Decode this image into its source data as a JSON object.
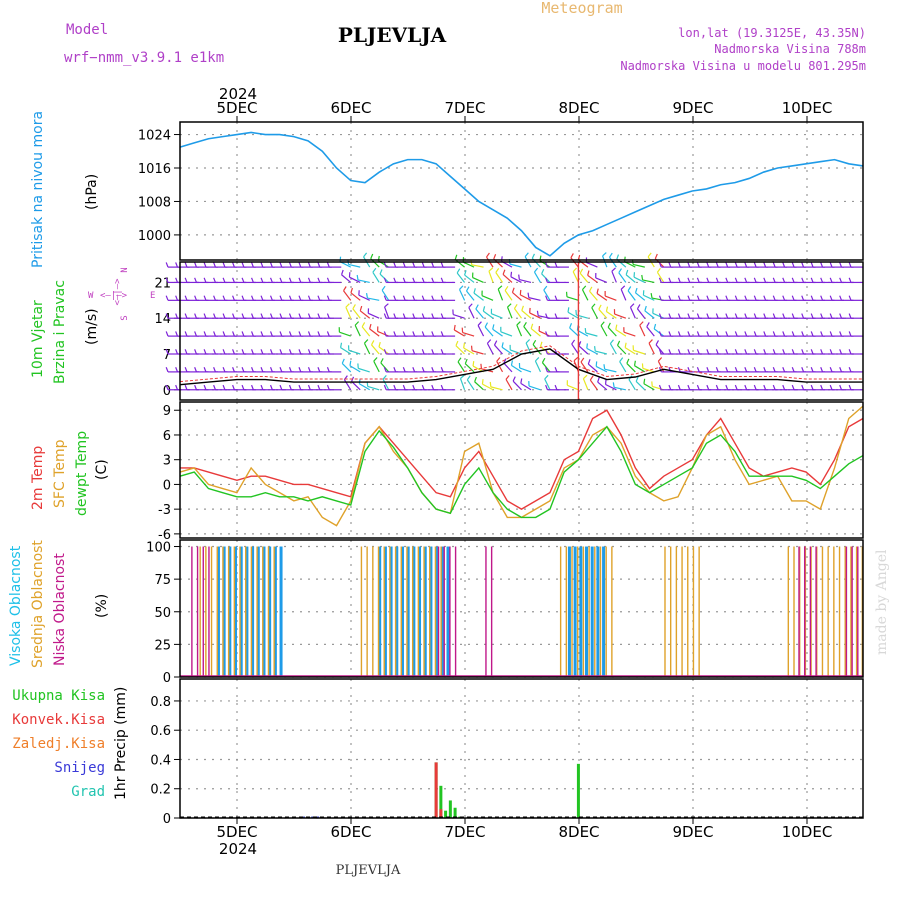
{
  "header": {
    "model_label": "Model",
    "model_name": "wrf−nmm_v3.9.1  e1km",
    "station": "PLJEVLJA",
    "product": "Meteogram",
    "coords": "lon,lat (19.3125E, 43.35N)",
    "elevation": "Nadmorska Visina 788m",
    "model_elevation": "Nadmorska Visina u modelu 801.295m",
    "year": "2024",
    "footer_station": "PLJEVLJA",
    "watermark": "made by Angel"
  },
  "colors": {
    "pressure": "#1e9be8",
    "temp2m": "#e83a3a",
    "sfc": "#dfa22a",
    "dewpt": "#22c422",
    "high": "#1e9be8",
    "mid": "#dfa22a",
    "low": "#c0188a",
    "total": "#22c422",
    "conv": "#e83a3a",
    "frozen": "#ef7f2a",
    "snow": "#3a3ad8",
    "graupel": "#22c4b0",
    "barb": "#7d22d8",
    "compass": "#c040c0"
  },
  "x_axis": {
    "days": [
      "5DEC",
      "6DEC",
      "7DEC",
      "8DEC",
      "9DEC",
      "10DEC"
    ],
    "year": "2024"
  },
  "panel_labels": {
    "pressure": {
      "title": "Pritisak na nivou mora",
      "unit": "(hPa)"
    },
    "wind": {
      "title1": "10m Vjetar",
      "title2": "Brzina i Pravac",
      "unit": "(m/s)",
      "compass_n": "N",
      "compass_e": "E",
      "compass_w": "W",
      "compass_s": "S",
      "compass_glyph1": "<—|—>",
      "compass_glyph2": "<—|—>"
    },
    "temp": {
      "t1": "2m Temp",
      "t2": "SFC Temp",
      "t3": "dewpt Temp",
      "unit": "(C)"
    },
    "cloud": {
      "c1": "Visoka Oblacnost",
      "c2": "Srednja Oblacnost",
      "c3": "Niska Oblacnost",
      "unit": "(%)"
    },
    "precip": {
      "unit": "1hr Precip (mm)",
      "legend": [
        "Ukupna Kisa",
        "Konvek.Kisa",
        "Zaledj.Kisa",
        "Snijeg",
        "Grad"
      ]
    }
  },
  "chart_data": [
    {
      "type": "line",
      "title": "Pritisak na nivou mora",
      "ylabel": "(hPa)",
      "ylim": [
        994,
        1027
      ],
      "yticks": [
        1000,
        1008,
        1016,
        1024
      ],
      "x_start": "2024-12-04 15:00",
      "x_end": "2024-12-10 15:00",
      "grid": true,
      "series": [
        {
          "name": "Pritisak na nivou mora",
          "x_hours": [
            0,
            3,
            6,
            9,
            12,
            15,
            18,
            21,
            24,
            27,
            30,
            33,
            36,
            39,
            42,
            45,
            48,
            51,
            54,
            57,
            60,
            63,
            66,
            69,
            72,
            75,
            78,
            81,
            84,
            87,
            90,
            93,
            96,
            99,
            102,
            105,
            108,
            111,
            114,
            117,
            120,
            123,
            126,
            129,
            132,
            135,
            138,
            141,
            144
          ],
          "values": [
            1021,
            1022,
            1023,
            1023.5,
            1024,
            1024.5,
            1024,
            1024,
            1023.5,
            1022.5,
            1020,
            1016,
            1013,
            1012.5,
            1015,
            1017,
            1018,
            1018,
            1017,
            1014,
            1011,
            1008,
            1006,
            1004,
            1001,
            997,
            995,
            998,
            1000,
            1001,
            1002.5,
            1004,
            1005.5,
            1007,
            1008.5,
            1009.5,
            1010.5,
            1011,
            1012,
            1012.5,
            1013.5,
            1015,
            1016,
            1016.5,
            1017,
            1017.5,
            1018,
            1017,
            1016.5
          ]
        }
      ]
    },
    {
      "type": "line",
      "title": "10m Vjetar Brzina i Pravac",
      "ylabel": "(m/s)",
      "ylim": [
        -2,
        25
      ],
      "yticks": [
        0,
        7,
        14,
        21
      ],
      "grid": true,
      "series": [
        {
          "name": "Brzina",
          "x_hours": [
            0,
            6,
            12,
            18,
            24,
            30,
            36,
            42,
            48,
            54,
            60,
            66,
            72,
            78,
            84,
            90,
            96,
            102,
            108,
            114,
            120,
            126,
            132,
            138,
            144
          ],
          "values": [
            1,
            1.5,
            2,
            2,
            1.5,
            1.5,
            1.5,
            1.5,
            1.5,
            2,
            3,
            4,
            7,
            8,
            4,
            2,
            2.5,
            4,
            3,
            2,
            2,
            2,
            1.5,
            1.5,
            1.5
          ]
        }
      ]
    },
    {
      "type": "line",
      "title": "Temp",
      "ylabel": "(C)",
      "ylim": [
        -6.5,
        10
      ],
      "yticks": [
        -6,
        -3,
        0,
        3,
        6,
        9
      ],
      "grid": true,
      "series": [
        {
          "name": "2m Temp",
          "x_hours": [
            0,
            3,
            6,
            9,
            12,
            15,
            18,
            21,
            24,
            27,
            30,
            33,
            36,
            39,
            42,
            45,
            48,
            51,
            54,
            57,
            60,
            63,
            66,
            69,
            72,
            75,
            78,
            81,
            84,
            87,
            90,
            93,
            96,
            99,
            102,
            105,
            108,
            111,
            114,
            117,
            120,
            123,
            126,
            129,
            132,
            135,
            138,
            141,
            144
          ],
          "values": [
            2,
            2,
            1.5,
            1,
            0.5,
            1,
            1,
            0.5,
            0,
            0,
            -0.5,
            -1,
            -1.5,
            5,
            7,
            5,
            3,
            1,
            -1,
            -1.5,
            2,
            4,
            1,
            -2,
            -3,
            -2,
            -1,
            3,
            4,
            8,
            9,
            6,
            2,
            -0.5,
            1,
            2,
            3,
            6,
            8,
            5,
            2,
            1,
            1.5,
            2,
            1.5,
            0,
            3,
            7,
            8
          ]
        },
        {
          "name": "SFC Temp",
          "x_hours": [
            0,
            3,
            6,
            9,
            12,
            15,
            18,
            21,
            24,
            27,
            30,
            33,
            36,
            39,
            42,
            45,
            48,
            51,
            54,
            57,
            60,
            63,
            66,
            69,
            72,
            75,
            78,
            81,
            84,
            87,
            90,
            93,
            96,
            99,
            102,
            105,
            108,
            111,
            114,
            117,
            120,
            123,
            126,
            129,
            132,
            135,
            138,
            141,
            144
          ],
          "values": [
            1.5,
            2,
            0,
            -0.5,
            -1,
            2,
            0,
            -1,
            -2,
            -1.5,
            -4,
            -5,
            -2,
            5,
            7,
            4,
            2,
            -1,
            -3,
            -3.5,
            4,
            5,
            -1,
            -4,
            -4,
            -3,
            -2,
            2,
            3,
            6,
            7,
            5,
            1,
            -1,
            -2,
            -1.5,
            2,
            6,
            7,
            3,
            0,
            0.5,
            1,
            -2,
            -2,
            -3,
            2,
            8,
            9.5
          ]
        },
        {
          "name": "dewpt Temp",
          "x_hours": [
            0,
            3,
            6,
            9,
            12,
            15,
            18,
            21,
            24,
            27,
            30,
            33,
            36,
            39,
            42,
            45,
            48,
            51,
            54,
            57,
            60,
            63,
            66,
            69,
            72,
            75,
            78,
            81,
            84,
            87,
            90,
            93,
            96,
            99,
            102,
            105,
            108,
            111,
            114,
            117,
            120,
            123,
            126,
            129,
            132,
            135,
            138,
            141,
            144
          ],
          "values": [
            1,
            1.5,
            -0.5,
            -1,
            -1.5,
            -1.5,
            -1,
            -1.5,
            -1.5,
            -2,
            -1.5,
            -2,
            -2.5,
            4,
            6.5,
            4.5,
            2,
            -1,
            -3,
            -3.5,
            0,
            2,
            -1,
            -3,
            -4,
            -4,
            -3,
            1.5,
            3,
            5,
            7,
            4,
            0,
            -1,
            0,
            1,
            2,
            5,
            6,
            4,
            1,
            1,
            1,
            1,
            0.5,
            -0.5,
            1,
            2.5,
            3.5
          ]
        }
      ]
    },
    {
      "type": "bar",
      "title": "Oblacnost",
      "ylabel": "(%)",
      "ylim": [
        0,
        105
      ],
      "yticks": [
        0,
        25,
        50,
        75,
        100
      ],
      "grid": true,
      "series": [
        {
          "name": "Visoka Oblacnost",
          "intervals": [
            [
              8,
              22
            ],
            [
              42,
              57
            ],
            [
              82,
              90
            ]
          ],
          "values": [
            100,
            100,
            100
          ]
        },
        {
          "name": "Srednja Oblacnost",
          "intervals": [
            [
              4,
              20
            ],
            [
              38,
              56
            ],
            [
              80,
              92
            ],
            [
              102,
              110
            ],
            [
              128,
              144
            ]
          ],
          "values": [
            100,
            100,
            100,
            100,
            100
          ]
        },
        {
          "name": "Niska Oblacnost",
          "intervals": [
            [
              2,
              6
            ],
            [
              54,
              58
            ],
            [
              64,
              66
            ],
            [
              130,
              134
            ],
            [
              140,
              143
            ]
          ],
          "values": [
            100,
            100,
            100,
            100,
            100
          ]
        }
      ]
    },
    {
      "type": "bar",
      "title": "1hr Precip",
      "ylabel": "1hr Precip (mm)",
      "ylim": [
        0,
        0.95
      ],
      "yticks": [
        0,
        0.2,
        0.4,
        0.6,
        0.8
      ],
      "grid": true,
      "series": [
        {
          "name": "Ukupna Kisa",
          "x_hours": [
            26,
            27,
            28,
            29,
            30,
            54,
            55,
            56,
            57,
            58,
            59,
            84
          ],
          "values": [
            0.01,
            0.01,
            0.01,
            0.01,
            0.01,
            0.38,
            0.22,
            0.05,
            0.12,
            0.07,
            0.01,
            0.37
          ]
        },
        {
          "name": "Konvek.Kisa",
          "x_hours": [
            54,
            55
          ],
          "values": [
            0.38,
            0.06
          ]
        },
        {
          "name": "Snijeg",
          "x_hours": [
            26,
            27,
            28,
            29
          ],
          "values": [
            0.01,
            0.01,
            0.01,
            0.01
          ]
        }
      ]
    }
  ]
}
